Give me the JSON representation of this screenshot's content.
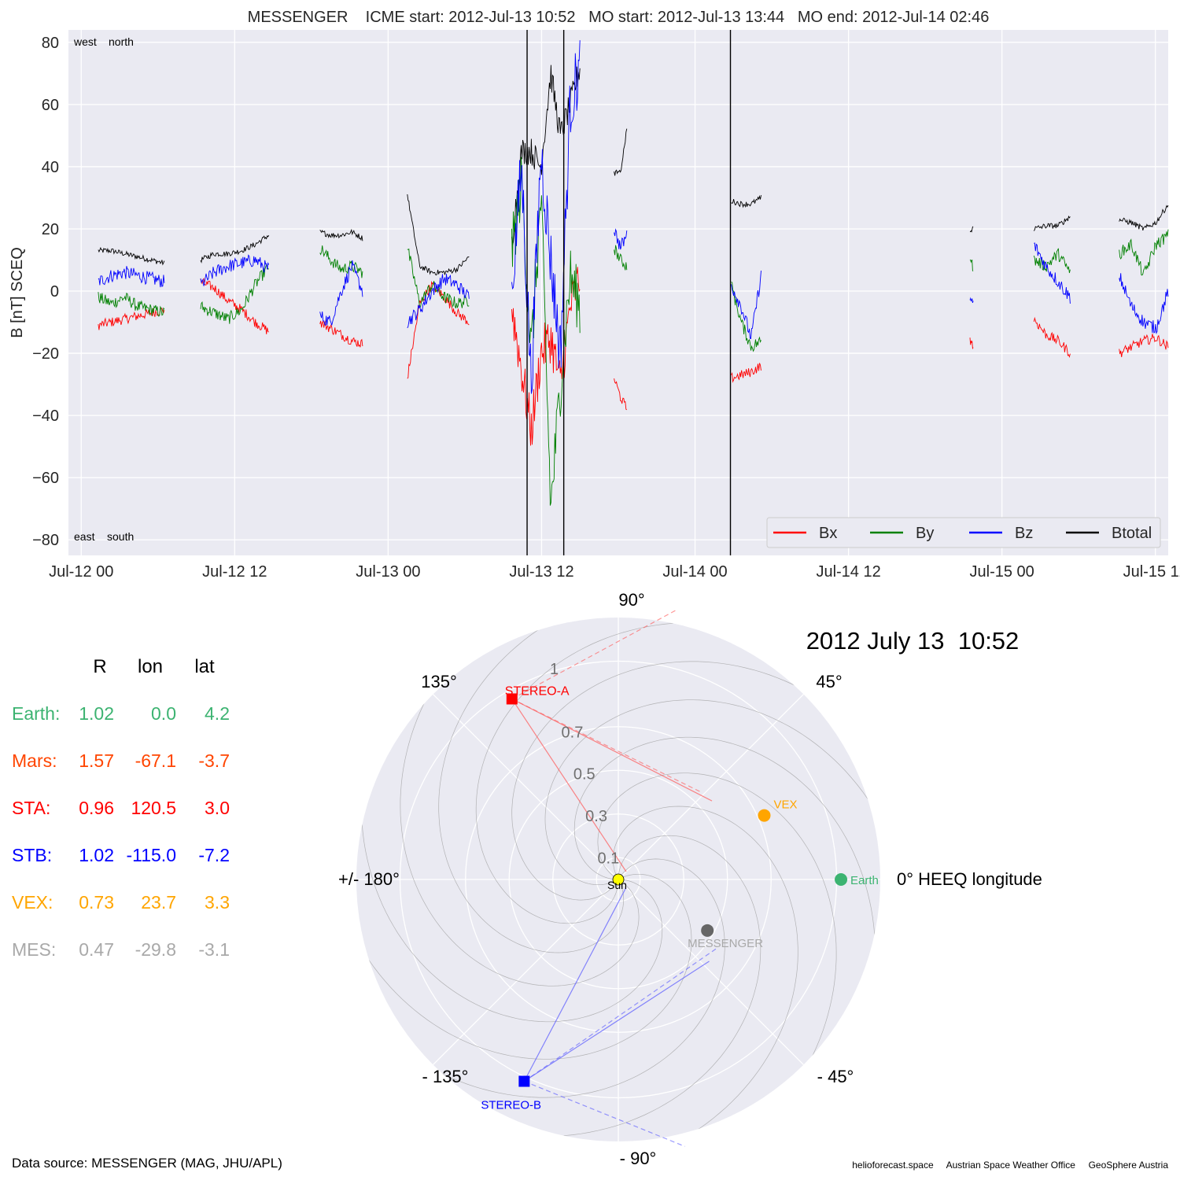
{
  "chart_data": [
    {
      "type": "line",
      "title": "MESSENGER    ICME start: 2012-Jul-13 10:52   MO start: 2012-Jul-13 13:44   MO end: 2012-Jul-14 02:46",
      "ylabel": "B [nT] SCEQ",
      "xlabel": "",
      "xlim": [
        "2012-07-11T23:00",
        "2012-07-15T13:00"
      ],
      "ylim": [
        -85,
        84
      ],
      "grid": true,
      "x_ticks": [
        "Jul-12 00",
        "Jul-12 12",
        "Jul-13 00",
        "Jul-13 12",
        "Jul-14 00",
        "Jul-14 12",
        "Jul-15 00",
        "Jul-15 12"
      ],
      "x_tick_times": [
        "2012-07-12T00:00",
        "2012-07-12T12:00",
        "2012-07-13T00:00",
        "2012-07-13T12:00",
        "2012-07-14T00:00",
        "2012-07-14T12:00",
        "2012-07-15T00:00",
        "2012-07-15T12:00"
      ],
      "y_ticks": [
        80,
        60,
        40,
        20,
        0,
        -20,
        -40,
        -60,
        -80
      ],
      "y_tick_labels": [
        "80",
        "60",
        "40",
        "20",
        "0",
        "−20",
        "−40",
        "−60",
        "−80"
      ],
      "annotations": {
        "west": "west",
        "north": "north",
        "east": "east",
        "south": "south"
      },
      "legend_position": "bottom-right",
      "vlines": [
        "2012-07-13T10:52",
        "2012-07-13T13:44",
        "2012-07-14T02:46"
      ],
      "segments": [
        {
          "start": "2012-07-12T01:20",
          "end": "2012-07-12T06:30",
          "Bx": [
            -11,
            -10,
            -9,
            -8,
            -7,
            -6
          ],
          "By": [
            -2,
            -4,
            -2,
            -5,
            -6,
            -7
          ],
          "Bz": [
            3,
            5,
            6,
            5,
            4,
            3
          ],
          "Btotal": [
            13,
            13,
            12,
            11,
            10,
            9
          ]
        },
        {
          "start": "2012-07-12T09:20",
          "end": "2012-07-12T14:40",
          "Bx": [
            3,
            1,
            -3,
            -6,
            -10,
            -13
          ],
          "By": [
            -5,
            -7,
            -9,
            -6,
            2,
            8
          ],
          "Bz": [
            2,
            6,
            8,
            9,
            10,
            7
          ],
          "Btotal": [
            10,
            12,
            12,
            13,
            15,
            18
          ]
        },
        {
          "start": "2012-07-12T18:40",
          "end": "2012-07-12T22:00",
          "Bx": [
            -10,
            -12,
            -14,
            -16,
            -17
          ],
          "By": [
            14,
            10,
            7,
            8,
            6
          ],
          "Bz": [
            -8,
            -10,
            0,
            8,
            0
          ],
          "Btotal": [
            19,
            18,
            18,
            19,
            17
          ]
        },
        {
          "start": "2012-07-13T01:30",
          "end": "2012-07-13T06:20",
          "Bx": [
            -28,
            -4,
            2,
            -2,
            -7,
            -10
          ],
          "By": [
            14,
            -4,
            2,
            -2,
            -4,
            -3
          ],
          "Bz": [
            -10,
            -6,
            0,
            4,
            2,
            -2
          ],
          "Btotal": [
            31,
            8,
            6,
            6,
            7,
            11
          ]
        },
        {
          "start": "2012-07-13T09:40",
          "end": "2012-07-13T15:00",
          "Bx": [
            -5,
            -25,
            -45,
            -20,
            -15,
            -30,
            -5,
            5
          ],
          "By": [
            12,
            35,
            -20,
            30,
            -70,
            -30,
            5,
            -5
          ],
          "Bz": [
            0,
            40,
            -30,
            45,
            10,
            -20,
            60,
            72
          ],
          "Btotal": [
            15,
            45,
            45,
            40,
            70,
            50,
            60,
            72
          ]
        },
        {
          "start": "2012-07-13T17:40",
          "end": "2012-07-13T18:40",
          "Bx": [
            -28,
            -34,
            -38
          ],
          "By": [
            14,
            10,
            8
          ],
          "Bz": [
            20,
            14,
            18
          ],
          "Btotal": [
            38,
            38,
            52
          ]
        },
        {
          "start": "2012-07-14T02:50",
          "end": "2012-07-14T05:10",
          "Bx": [
            -28,
            -27,
            -26,
            -24
          ],
          "By": [
            2,
            -10,
            -18,
            -16
          ],
          "Bz": [
            2,
            -5,
            -15,
            5
          ],
          "Btotal": [
            29,
            28,
            28,
            30
          ]
        },
        {
          "start": "2012-07-14T21:30",
          "end": "2012-07-14T21:45",
          "Bx": [
            -16,
            -18
          ],
          "By": [
            10,
            8
          ],
          "Bz": [
            -4,
            -2
          ],
          "Btotal": [
            19,
            20
          ]
        },
        {
          "start": "2012-07-15T02:30",
          "end": "2012-07-15T05:20",
          "Bx": [
            -9,
            -14,
            -16,
            -20
          ],
          "By": [
            10,
            8,
            12,
            6
          ],
          "Bz": [
            15,
            8,
            3,
            -2
          ],
          "Btotal": [
            20,
            21,
            21,
            24
          ]
        },
        {
          "start": "2012-07-15T09:10",
          "end": "2012-07-15T13:00",
          "Bx": [
            -20,
            -18,
            -16,
            -15,
            -18
          ],
          "By": [
            12,
            15,
            5,
            15,
            18
          ],
          "Bz": [
            5,
            -5,
            -10,
            -12,
            0
          ],
          "Btotal": [
            23,
            22,
            20,
            22,
            28
          ]
        }
      ],
      "series": [
        {
          "name": "Bx",
          "color": "#ff0000"
        },
        {
          "name": "By",
          "color": "#008000"
        },
        {
          "name": "Bz",
          "color": "#0000ff"
        },
        {
          "name": "Btotal",
          "color": "#000000"
        }
      ]
    },
    {
      "type": "scatter",
      "subtype": "polar",
      "date_title": "2012 July 13  10:52",
      "angle_labels": {
        "a90": "90°",
        "a45": "45°",
        "a135": "135°",
        "a0": "0° HEEQ longitude",
        "a180": "+/- 180°",
        "am45": "- 45°",
        "am90": "- 90°",
        "am135": "- 135°"
      },
      "r_max": 1.2,
      "r_ticks": [
        0.1,
        0.3,
        0.5,
        0.7,
        1.0
      ],
      "r_tick_labels": [
        "0.1",
        "0.3",
        "0.5",
        "0.7",
        "1"
      ],
      "points": [
        {
          "name": "Sun",
          "r": 0,
          "lon": 0,
          "color": "#ffff00",
          "marker": "circle"
        },
        {
          "name": "Earth",
          "r": 1.02,
          "lon": 0.0,
          "color": "#3cb371",
          "marker": "circle"
        },
        {
          "name": "VEX",
          "r": 0.73,
          "lon": 23.7,
          "color": "#ffa500",
          "marker": "circle"
        },
        {
          "name": "MESSENGER",
          "r": 0.47,
          "lon": -29.8,
          "color": "#666666",
          "marker": "circle"
        },
        {
          "name": "STEREO-A",
          "r": 0.96,
          "lon": 120.5,
          "color": "#ff0000",
          "marker": "square"
        },
        {
          "name": "STEREO-B",
          "r": 1.02,
          "lon": -115.0,
          "color": "#0000ff",
          "marker": "square"
        }
      ]
    },
    {
      "type": "table",
      "columns": [
        "R",
        "lon",
        "lat"
      ],
      "rows": [
        {
          "label": "Earth:",
          "R": "1.02",
          "lon": "0.0",
          "lat": "4.2",
          "color": "#3cb371"
        },
        {
          "label": "Mars:",
          "R": "1.57",
          "lon": "-67.1",
          "lat": "-3.7",
          "color": "#ff4500"
        },
        {
          "label": "STA:",
          "R": "0.96",
          "lon": "120.5",
          "lat": "3.0",
          "color": "#ff0000"
        },
        {
          "label": "STB:",
          "R": "1.02",
          "lon": "-115.0",
          "lat": "-7.2",
          "color": "#0000ff"
        },
        {
          "label": "VEX:",
          "R": "0.73",
          "lon": "23.7",
          "lat": "3.3",
          "color": "#ffa500"
        },
        {
          "label": "MES:",
          "R": "0.47",
          "lon": "-29.8",
          "lat": "-3.1",
          "color": "#a9a9a9"
        }
      ]
    }
  ],
  "footer": {
    "source": "Data source: MESSENGER (MAG, JHU/APL)",
    "credits": "helioforecast.space     Austrian Space Weather Office     GeoSphere Austria"
  }
}
